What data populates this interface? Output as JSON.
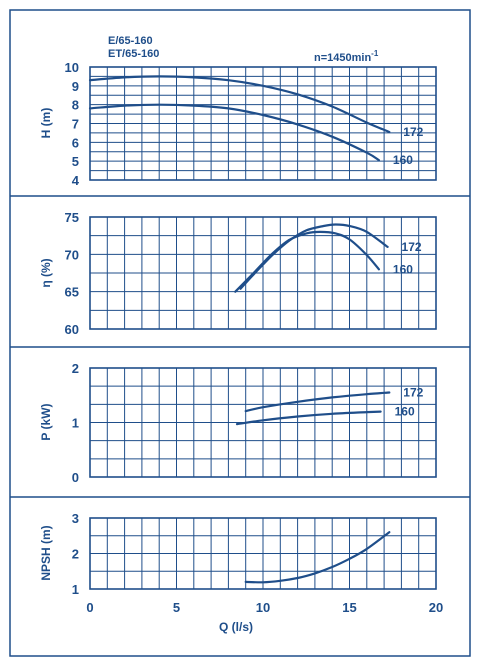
{
  "colors": {
    "ink": "#1f4e8a",
    "background": "#ffffff"
  },
  "header": {
    "model_line_1": "E/65-160",
    "model_line_2": "ET/65-160",
    "speed_prefix": "n=1450min",
    "speed_exponent": "-1"
  },
  "shared_x": {
    "label": "Q (l/s)",
    "ticks": [
      "0",
      "5",
      "10",
      "15",
      "20"
    ],
    "range": [
      0,
      20
    ]
  },
  "chart_data": [
    {
      "type": "line",
      "id": "head",
      "ylabel": "H (m)",
      "xlim": [
        0,
        20
      ],
      "ylim": [
        4,
        10
      ],
      "yticks": [
        "4",
        "5",
        "6",
        "7",
        "8",
        "9",
        "10"
      ],
      "grid": true,
      "series": [
        {
          "name": "172",
          "x": [
            0,
            2,
            4,
            6,
            8,
            10,
            12,
            14,
            16,
            17.3
          ],
          "y": [
            9.3,
            9.45,
            9.5,
            9.45,
            9.3,
            9.0,
            8.55,
            7.9,
            7.05,
            6.55
          ]
        },
        {
          "name": "160",
          "x": [
            0,
            2,
            4,
            6,
            8,
            10,
            12,
            14,
            16,
            16.7
          ],
          "y": [
            7.8,
            7.95,
            8.0,
            7.95,
            7.8,
            7.45,
            6.95,
            6.3,
            5.45,
            5.05
          ]
        }
      ]
    },
    {
      "type": "line",
      "id": "efficiency",
      "ylabel": "η (%)",
      "xlim": [
        0,
        20
      ],
      "ylim": [
        60,
        75
      ],
      "yticks": [
        "60",
        "65",
        "70",
        "75"
      ],
      "grid": true,
      "series": [
        {
          "name": "172",
          "x": [
            8.7,
            9.5,
            10.5,
            11.5,
            12.5,
            13.5,
            14.2,
            15,
            16,
            17.2
          ],
          "y": [
            65.4,
            67.4,
            69.8,
            71.8,
            73.2,
            73.8,
            74.0,
            73.8,
            73.0,
            71.0
          ]
        },
        {
          "name": "160",
          "x": [
            8.4,
            9.5,
            10.5,
            11.5,
            12.5,
            13.3,
            14.2,
            15,
            16,
            16.7
          ],
          "y": [
            65.0,
            67.6,
            70.0,
            71.9,
            72.8,
            73.0,
            72.8,
            72.0,
            69.9,
            68.0
          ]
        }
      ]
    },
    {
      "type": "line",
      "id": "power",
      "ylabel": "P (kW)",
      "xlim": [
        0,
        20
      ],
      "ylim": [
        0,
        2
      ],
      "yticks": [
        "0",
        "1",
        "2"
      ],
      "grid": true,
      "series": [
        {
          "name": "172",
          "x": [
            9,
            10,
            12,
            14,
            16,
            17.3
          ],
          "y": [
            1.21,
            1.28,
            1.38,
            1.46,
            1.52,
            1.55
          ]
        },
        {
          "name": "160",
          "x": [
            8.5,
            10,
            12,
            14,
            16,
            16.8
          ],
          "y": [
            0.97,
            1.04,
            1.11,
            1.16,
            1.19,
            1.2
          ]
        }
      ]
    },
    {
      "type": "line",
      "id": "npsh",
      "ylabel": "NPSH (m)",
      "xlim": [
        0,
        20
      ],
      "ylim": [
        1,
        3
      ],
      "yticks": [
        "1",
        "2",
        "3"
      ],
      "grid": true,
      "series": [
        {
          "x": [
            9,
            10,
            11,
            12,
            13,
            14,
            15,
            16,
            17.3
          ],
          "y": [
            1.2,
            1.19,
            1.23,
            1.31,
            1.44,
            1.62,
            1.85,
            2.13,
            2.6
          ]
        }
      ]
    }
  ]
}
